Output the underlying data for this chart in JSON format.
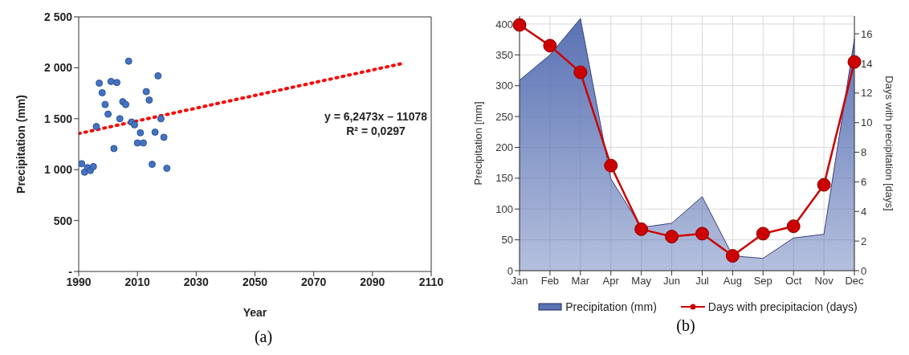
{
  "chart_data": [
    {
      "type": "scatter",
      "xlabel": "Year",
      "ylabel": "Precipitation  (mm)",
      "xlim": [
        1990,
        2110
      ],
      "xticks": [
        1990,
        2010,
        2030,
        2050,
        2070,
        2090,
        2110
      ],
      "ylim": [
        0,
        2500
      ],
      "yticks": [
        {
          "value": 0,
          "label": "-"
        },
        500,
        {
          "value": 1000,
          "label": "1 000"
        },
        {
          "value": 1500,
          "label": "1 500"
        },
        {
          "value": 2000,
          "label": "2 000"
        },
        {
          "value": 2500,
          "label": "2 500"
        }
      ],
      "grid": false,
      "series": [
        {
          "type": "scatter",
          "color": "#4472c4",
          "marker": "circle",
          "x": [
            1991,
            1992,
            1993,
            1994,
            1995,
            1996,
            1997,
            1998,
            1999,
            2000,
            2001,
            2002,
            2003,
            2004,
            2005,
            2006,
            2007,
            2008,
            2009,
            2010,
            2011,
            2012,
            2013,
            2014,
            2015,
            2016,
            2017,
            2018,
            2019,
            2020
          ],
          "values": [
            1058,
            975,
            1019,
            991,
            1030,
            1423,
            1849,
            1755,
            1639,
            1545,
            1866,
            1207,
            1855,
            1500,
            1667,
            1639,
            2065,
            1467,
            1440,
            1262,
            1362,
            1262,
            1766,
            1683,
            1052,
            1368,
            1921,
            1500,
            1318,
            1013
          ]
        },
        {
          "type": "line",
          "color": "#ff0000",
          "line_style": "dotted",
          "marker": "none",
          "x": [
            1990,
            2100
          ],
          "values": [
            1354,
            2041
          ]
        }
      ],
      "annotations": [
        "y = 6,2473x – 11078",
        "R² = 0,0297",
        "(a)"
      ]
    },
    {
      "type": "area",
      "ylabel": "Precipitation [mm]",
      "y2label": "Days with precipitation [days]",
      "categories": [
        "Jan",
        "Feb",
        "Mar",
        "Apr",
        "May",
        "Jun",
        "Jul",
        "Aug",
        "Sep",
        "Oct",
        "Nov",
        "Dec"
      ],
      "ylim": [
        0,
        413
      ],
      "yticks": [
        0,
        50,
        100,
        150,
        200,
        250,
        300,
        350,
        400
      ],
      "y2lim": [
        0,
        17.2
      ],
      "y2ticks": [
        0,
        2,
        4,
        6,
        8,
        10,
        12,
        14,
        16
      ],
      "grid": true,
      "legend": "bottom",
      "series": [
        {
          "type": "area",
          "name": "Precipitation (mm)",
          "color": "#5a72b4",
          "values": [
            309,
            350,
            409,
            149,
            70,
            77,
            120,
            24,
            20,
            53,
            59,
            376
          ]
        },
        {
          "type": "line",
          "name": "Days with precipitacion (days)",
          "color": "#cc0000",
          "axis": "y2",
          "marker": "circle",
          "values": [
            16.6,
            15.2,
            13.4,
            7.1,
            2.8,
            2.3,
            2.5,
            1.0,
            2.5,
            3.0,
            5.8,
            14.1
          ]
        }
      ],
      "annotations": [
        "(b)"
      ]
    }
  ]
}
